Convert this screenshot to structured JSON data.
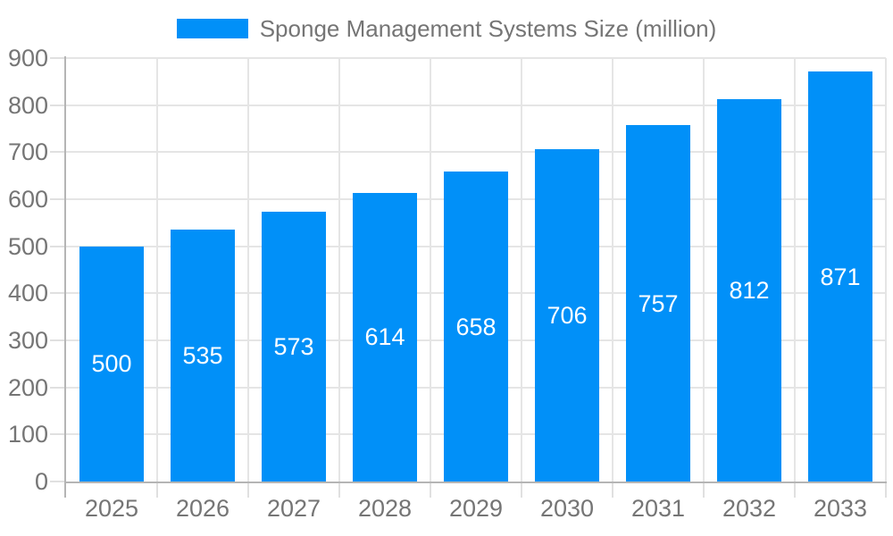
{
  "chart_data": {
    "type": "bar",
    "title": "Sponge Management Systems Size (million)",
    "legend_label": "Sponge Management Systems Size (million)",
    "legend_position": "top-center",
    "categories": [
      "2025",
      "2026",
      "2027",
      "2028",
      "2029",
      "2030",
      "2031",
      "2032",
      "2033"
    ],
    "values": [
      500,
      535,
      573,
      614,
      658,
      706,
      757,
      812,
      871
    ],
    "xlabel": "",
    "ylabel": "",
    "ylim": [
      0,
      900
    ],
    "yticks": [
      0,
      100,
      200,
      300,
      400,
      500,
      600,
      700,
      800,
      900
    ],
    "grid": true,
    "value_labels": "inside-center"
  },
  "colors": {
    "bar": "#0190F8",
    "grid": "#E5E5E5",
    "tick": "#E0E0E0",
    "axis": "#B5B5B5",
    "text": "#757575",
    "value_label": "#FFFFFF",
    "background": "#FFFFFF"
  }
}
